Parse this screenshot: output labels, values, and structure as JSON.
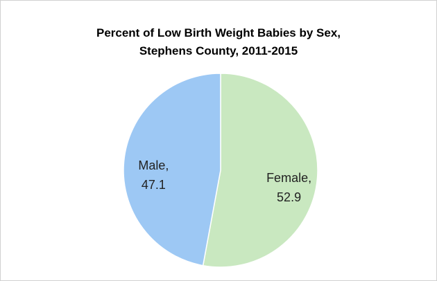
{
  "chart_data": {
    "type": "pie",
    "title": [
      "Percent of Low Birth Weight Babies by Sex,",
      "Stephens County, 2011-2015"
    ],
    "categories": [
      "Female",
      "Male"
    ],
    "values": [
      52.9,
      47.1
    ],
    "value_labels": [
      "Female,\n52.9",
      "Male,\n47.1"
    ],
    "colors": [
      "#c9e8c0",
      "#9dc8f4"
    ]
  }
}
